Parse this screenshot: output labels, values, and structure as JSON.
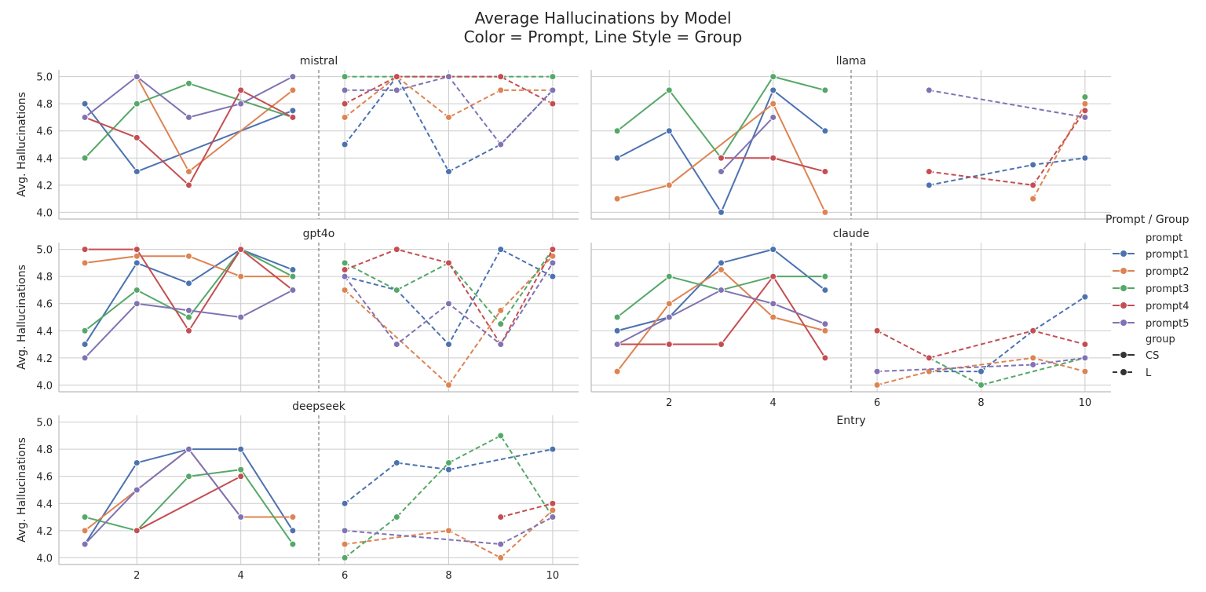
{
  "chart_data": {
    "type": "line",
    "title": "Average Hallucinations by Model",
    "subtitle": "Color = Prompt, Line Style = Group",
    "xlabel": "Entry",
    "ylabel": "Avg. Hallucinations",
    "xlim": [
      0.5,
      10.5
    ],
    "ylim": [
      3.95,
      5.05
    ],
    "xticks": [
      2,
      4,
      6,
      8,
      10
    ],
    "yticks": [
      4.0,
      4.2,
      4.4,
      4.6,
      4.8,
      5.0
    ],
    "grid": true,
    "group_divider_x": 5.5,
    "legend": {
      "title": "Prompt / Group",
      "placement": "right",
      "prompt_header": "prompt",
      "group_header": "group",
      "prompts": [
        "prompt1",
        "prompt2",
        "prompt3",
        "prompt4",
        "prompt5"
      ],
      "groups": [
        {
          "name": "CS",
          "style": "solid"
        },
        {
          "name": "L",
          "style": "dashed"
        }
      ]
    },
    "colors": {
      "prompt1": "#4c72b0",
      "prompt2": "#dd8452",
      "prompt3": "#55a868",
      "prompt4": "#c44e52",
      "prompt5": "#8172b3"
    },
    "panels": [
      {
        "model": "mistral",
        "series": [
          {
            "prompt": "prompt1",
            "group": "CS",
            "x": [
              1,
              2,
              5
            ],
            "y": [
              4.8,
              4.3,
              4.75
            ]
          },
          {
            "prompt": "prompt2",
            "group": "CS",
            "x": [
              2,
              3,
              5
            ],
            "y": [
              5.0,
              4.3,
              4.9
            ]
          },
          {
            "prompt": "prompt3",
            "group": "CS",
            "x": [
              1,
              2,
              3,
              5
            ],
            "y": [
              4.4,
              4.8,
              4.95,
              4.7
            ]
          },
          {
            "prompt": "prompt4",
            "group": "CS",
            "x": [
              1,
              2,
              3,
              4,
              5
            ],
            "y": [
              4.7,
              4.55,
              4.2,
              4.9,
              4.7
            ]
          },
          {
            "prompt": "prompt5",
            "group": "CS",
            "x": [
              1,
              2,
              3,
              4,
              5
            ],
            "y": [
              4.7,
              5.0,
              4.7,
              4.8,
              5.0
            ]
          },
          {
            "prompt": "prompt1",
            "group": "L",
            "x": [
              6,
              7,
              8,
              9,
              10
            ],
            "y": [
              4.5,
              5.0,
              4.3,
              4.5,
              4.9
            ]
          },
          {
            "prompt": "prompt2",
            "group": "L",
            "x": [
              6,
              7,
              8,
              9,
              10
            ],
            "y": [
              4.7,
              5.0,
              4.7,
              4.9,
              4.9
            ]
          },
          {
            "prompt": "prompt3",
            "group": "L",
            "x": [
              6,
              10
            ],
            "y": [
              5.0,
              5.0
            ]
          },
          {
            "prompt": "prompt4",
            "group": "L",
            "x": [
              6,
              7,
              8,
              9,
              10
            ],
            "y": [
              4.8,
              5.0,
              5.0,
              5.0,
              4.8
            ]
          },
          {
            "prompt": "prompt5",
            "group": "L",
            "x": [
              6,
              7,
              8,
              9,
              10
            ],
            "y": [
              4.9,
              4.9,
              5.0,
              4.5,
              4.9
            ]
          }
        ]
      },
      {
        "model": "llama",
        "series": [
          {
            "prompt": "prompt1",
            "group": "CS",
            "x": [
              1,
              2,
              3,
              4,
              5
            ],
            "y": [
              4.4,
              4.6,
              4.0,
              4.9,
              4.6
            ]
          },
          {
            "prompt": "prompt2",
            "group": "CS",
            "x": [
              1,
              2,
              4,
              5
            ],
            "y": [
              4.1,
              4.2,
              4.8,
              4.0
            ]
          },
          {
            "prompt": "prompt3",
            "group": "CS",
            "x": [
              1,
              2,
              3,
              4,
              5
            ],
            "y": [
              4.6,
              4.9,
              4.4,
              5.0,
              4.9
            ]
          },
          {
            "prompt": "prompt4",
            "group": "CS",
            "x": [
              3,
              4,
              5
            ],
            "y": [
              4.4,
              4.4,
              4.3
            ]
          },
          {
            "prompt": "prompt5",
            "group": "CS",
            "x": [
              3,
              4
            ],
            "y": [
              4.3,
              4.7
            ]
          },
          {
            "prompt": "prompt1",
            "group": "L",
            "x": [
              7,
              9,
              10
            ],
            "y": [
              4.2,
              4.35,
              4.4
            ]
          },
          {
            "prompt": "prompt2",
            "group": "L",
            "x": [
              9,
              10
            ],
            "y": [
              4.1,
              4.8
            ]
          },
          {
            "prompt": "prompt3",
            "group": "L",
            "x": [
              10
            ],
            "y": [
              4.85
            ]
          },
          {
            "prompt": "prompt4",
            "group": "L",
            "x": [
              7,
              9,
              10
            ],
            "y": [
              4.3,
              4.2,
              4.75
            ]
          },
          {
            "prompt": "prompt5",
            "group": "L",
            "x": [
              7,
              10
            ],
            "y": [
              4.9,
              4.7
            ]
          }
        ]
      },
      {
        "model": "gpt4o",
        "series": [
          {
            "prompt": "prompt1",
            "group": "CS",
            "x": [
              1,
              2,
              3,
              4,
              5
            ],
            "y": [
              4.3,
              4.9,
              4.75,
              5.0,
              4.85
            ]
          },
          {
            "prompt": "prompt2",
            "group": "CS",
            "x": [
              1,
              2,
              3,
              4,
              5
            ],
            "y": [
              4.9,
              4.95,
              4.95,
              4.8,
              4.8
            ]
          },
          {
            "prompt": "prompt3",
            "group": "CS",
            "x": [
              1,
              2,
              3,
              4,
              5
            ],
            "y": [
              4.4,
              4.7,
              4.5,
              5.0,
              4.8
            ]
          },
          {
            "prompt": "prompt4",
            "group": "CS",
            "x": [
              1,
              2,
              3,
              4,
              5
            ],
            "y": [
              5.0,
              5.0,
              4.4,
              5.0,
              4.7
            ]
          },
          {
            "prompt": "prompt5",
            "group": "CS",
            "x": [
              1,
              2,
              3,
              4,
              5
            ],
            "y": [
              4.2,
              4.6,
              4.55,
              4.5,
              4.7
            ]
          },
          {
            "prompt": "prompt1",
            "group": "L",
            "x": [
              6,
              7,
              8,
              9,
              10
            ],
            "y": [
              4.8,
              4.7,
              4.3,
              5.0,
              4.8
            ]
          },
          {
            "prompt": "prompt2",
            "group": "L",
            "x": [
              6,
              8,
              9,
              10
            ],
            "y": [
              4.7,
              4.0,
              4.55,
              4.95
            ]
          },
          {
            "prompt": "prompt3",
            "group": "L",
            "x": [
              6,
              7,
              8,
              9,
              10
            ],
            "y": [
              4.9,
              4.7,
              4.9,
              4.45,
              5.0
            ]
          },
          {
            "prompt": "prompt4",
            "group": "L",
            "x": [
              6,
              7,
              8,
              9,
              10
            ],
            "y": [
              4.85,
              5.0,
              4.9,
              4.3,
              5.0
            ]
          },
          {
            "prompt": "prompt5",
            "group": "L",
            "x": [
              6,
              7,
              8,
              9,
              10
            ],
            "y": [
              4.8,
              4.3,
              4.6,
              4.3,
              4.9
            ]
          }
        ]
      },
      {
        "model": "claude",
        "series": [
          {
            "prompt": "prompt1",
            "group": "CS",
            "x": [
              1,
              2,
              3,
              4,
              5
            ],
            "y": [
              4.4,
              4.5,
              4.9,
              5.0,
              4.7
            ]
          },
          {
            "prompt": "prompt2",
            "group": "CS",
            "x": [
              1,
              2,
              3,
              4,
              5
            ],
            "y": [
              4.1,
              4.6,
              4.85,
              4.5,
              4.4
            ]
          },
          {
            "prompt": "prompt3",
            "group": "CS",
            "x": [
              1,
              2,
              3,
              4,
              5
            ],
            "y": [
              4.5,
              4.8,
              4.7,
              4.8,
              4.8
            ]
          },
          {
            "prompt": "prompt4",
            "group": "CS",
            "x": [
              1,
              2,
              3,
              4,
              5
            ],
            "y": [
              4.3,
              4.3,
              4.3,
              4.8,
              4.2
            ]
          },
          {
            "prompt": "prompt5",
            "group": "CS",
            "x": [
              1,
              2,
              3,
              4,
              5
            ],
            "y": [
              4.3,
              4.5,
              4.7,
              4.6,
              4.45
            ]
          },
          {
            "prompt": "prompt1",
            "group": "L",
            "x": [
              7,
              8,
              9,
              10
            ],
            "y": [
              4.1,
              4.1,
              4.4,
              4.65
            ]
          },
          {
            "prompt": "prompt2",
            "group": "L",
            "x": [
              6,
              7,
              9,
              10
            ],
            "y": [
              4.0,
              4.1,
              4.2,
              4.1
            ]
          },
          {
            "prompt": "prompt3",
            "group": "L",
            "x": [
              7,
              8,
              10
            ],
            "y": [
              4.2,
              4.0,
              4.2
            ]
          },
          {
            "prompt": "prompt4",
            "group": "L",
            "x": [
              6,
              7,
              9,
              10
            ],
            "y": [
              4.4,
              4.2,
              4.4,
              4.3
            ]
          },
          {
            "prompt": "prompt5",
            "group": "L",
            "x": [
              6,
              9,
              10
            ],
            "y": [
              4.1,
              4.15,
              4.2
            ]
          }
        ]
      },
      {
        "model": "deepseek",
        "series": [
          {
            "prompt": "prompt1",
            "group": "CS",
            "x": [
              1,
              2,
              3,
              4,
              5
            ],
            "y": [
              4.1,
              4.7,
              4.8,
              4.8,
              4.2
            ]
          },
          {
            "prompt": "prompt2",
            "group": "CS",
            "x": [
              1,
              2,
              3,
              4,
              5
            ],
            "y": [
              4.2,
              4.5,
              4.8,
              4.3,
              4.3
            ]
          },
          {
            "prompt": "prompt3",
            "group": "CS",
            "x": [
              1,
              2,
              3,
              4,
              5
            ],
            "y": [
              4.3,
              4.2,
              4.6,
              4.65,
              4.1
            ]
          },
          {
            "prompt": "prompt4",
            "group": "CS",
            "x": [
              2,
              4
            ],
            "y": [
              4.2,
              4.6
            ]
          },
          {
            "prompt": "prompt5",
            "group": "CS",
            "x": [
              1,
              2,
              3,
              4
            ],
            "y": [
              4.1,
              4.5,
              4.8,
              4.3
            ]
          },
          {
            "prompt": "prompt1",
            "group": "L",
            "x": [
              6,
              7,
              8,
              10
            ],
            "y": [
              4.4,
              4.7,
              4.65,
              4.8
            ]
          },
          {
            "prompt": "prompt2",
            "group": "L",
            "x": [
              6,
              8,
              9,
              10
            ],
            "y": [
              4.1,
              4.2,
              4.0,
              4.35
            ]
          },
          {
            "prompt": "prompt3",
            "group": "L",
            "x": [
              6,
              7,
              8,
              9,
              10
            ],
            "y": [
              4.0,
              4.3,
              4.7,
              4.9,
              4.3
            ]
          },
          {
            "prompt": "prompt4",
            "group": "L",
            "x": [
              9,
              10
            ],
            "y": [
              4.3,
              4.4
            ]
          },
          {
            "prompt": "prompt5",
            "group": "L",
            "x": [
              6,
              9,
              10
            ],
            "y": [
              4.2,
              4.1,
              4.3
            ]
          }
        ]
      }
    ]
  }
}
